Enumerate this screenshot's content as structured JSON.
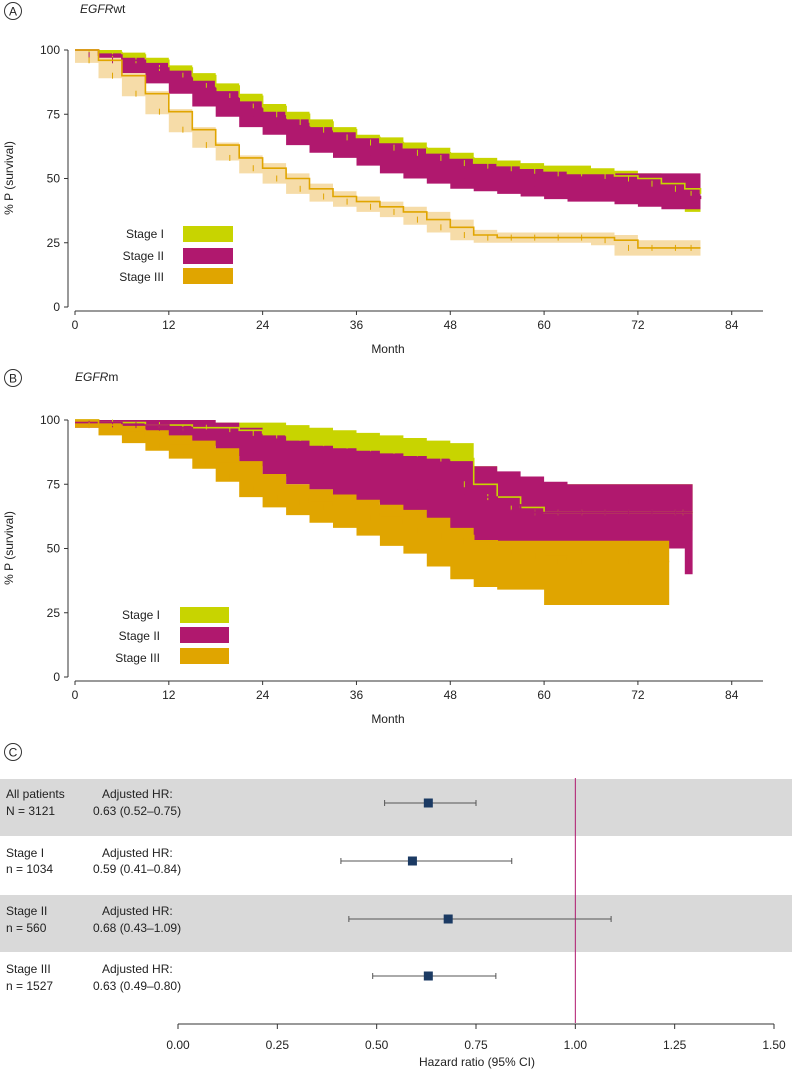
{
  "colors": {
    "stage1": "#c8d400",
    "stage2": "#b0186e",
    "stage3": "#e0a500",
    "stage3_band": "#f6dca8",
    "marker": "#1b3a63",
    "refline": "#b0186e",
    "shade": "#d9d9d9",
    "axis": "#333333"
  },
  "chart_data": [
    {
      "panel": "A",
      "type": "line",
      "title": "EGFRwt",
      "title_italic": "EGFR",
      "title_rest": "wt",
      "xlabel": "Month",
      "ylabel": "% P (survival)",
      "xlim": [
        0,
        88
      ],
      "ylim": [
        0,
        105
      ],
      "xticks": [
        "0",
        "12",
        "24",
        "36",
        "48",
        "60",
        "72",
        "84"
      ],
      "yticks": [
        "0",
        "25",
        "50",
        "75",
        "100"
      ],
      "legend": [
        "Stage I",
        "Stage II",
        "Stage III"
      ],
      "series": [
        {
          "name": "Stage I",
          "x": [
            0,
            3,
            6,
            9,
            12,
            15,
            18,
            21,
            24,
            27,
            30,
            33,
            36,
            39,
            42,
            45,
            48,
            51,
            54,
            57,
            60,
            63,
            66,
            69,
            72,
            75,
            78,
            80
          ],
          "y": [
            100,
            99,
            98,
            96,
            93,
            90,
            86,
            82,
            78,
            75,
            72,
            69,
            66,
            64,
            62,
            60,
            58,
            56,
            55,
            54,
            53,
            52,
            52,
            51,
            50,
            48,
            46,
            44
          ],
          "lo": [
            100,
            98,
            97,
            95,
            92,
            89,
            85,
            81,
            77,
            74,
            71,
            67,
            64,
            62,
            60,
            58,
            56,
            54,
            52,
            51,
            50,
            49,
            48,
            47,
            45,
            42,
            40,
            37
          ],
          "hi": [
            100,
            100,
            99,
            97,
            94,
            91,
            87,
            83,
            79,
            76,
            73,
            70,
            67,
            66,
            64,
            62,
            60,
            58,
            57,
            56,
            55,
            55,
            54,
            53,
            52,
            51,
            50,
            50
          ]
        },
        {
          "name": "Stage II",
          "x": [
            0,
            3,
            6,
            9,
            12,
            15,
            18,
            21,
            24,
            27,
            30,
            33,
            36,
            39,
            42,
            45,
            48,
            51,
            54,
            57,
            60,
            63,
            66,
            69,
            72,
            75,
            78,
            80
          ],
          "y": [
            100,
            98,
            96,
            93,
            89,
            85,
            81,
            77,
            73,
            70,
            67,
            64,
            62,
            60,
            57,
            55,
            53,
            51,
            50,
            49,
            48,
            47,
            46,
            46,
            45,
            44,
            43,
            42
          ],
          "lo": [
            100,
            97,
            94,
            91,
            87,
            83,
            78,
            74,
            70,
            67,
            63,
            60,
            58,
            55,
            52,
            50,
            48,
            46,
            45,
            44,
            43,
            42,
            41,
            41,
            40,
            39,
            38,
            38
          ],
          "hi": [
            100,
            99,
            97,
            95,
            92,
            88,
            84,
            80,
            76,
            73,
            70,
            68,
            66,
            64,
            62,
            60,
            58,
            56,
            55,
            54,
            53,
            52,
            52,
            52,
            52,
            52,
            52,
            52
          ]
        },
        {
          "name": "Stage III",
          "x": [
            0,
            3,
            6,
            9,
            12,
            15,
            18,
            21,
            24,
            27,
            30,
            33,
            36,
            39,
            42,
            45,
            48,
            51,
            54,
            57,
            60,
            63,
            66,
            69,
            72,
            75,
            78,
            80
          ],
          "y": [
            100,
            96,
            90,
            83,
            76,
            69,
            63,
            58,
            54,
            50,
            46,
            43,
            41,
            39,
            37,
            34,
            31,
            28,
            27,
            27,
            27,
            27,
            27,
            26,
            23,
            23,
            23,
            23
          ],
          "lo": [
            100,
            95,
            89,
            82,
            75,
            68,
            62,
            57,
            52,
            48,
            44,
            41,
            39,
            37,
            35,
            32,
            29,
            26,
            25,
            25,
            25,
            25,
            25,
            24,
            20,
            20,
            20,
            20
          ],
          "hi": [
            100,
            97,
            91,
            84,
            77,
            70,
            64,
            59,
            56,
            52,
            48,
            45,
            43,
            41,
            39,
            37,
            34,
            30,
            29,
            29,
            29,
            29,
            29,
            28,
            26,
            26,
            26,
            26
          ]
        }
      ]
    },
    {
      "panel": "B",
      "type": "line",
      "title": "EGFRm",
      "title_italic": "EGFR",
      "title_rest": "m",
      "xlabel": "Month",
      "ylabel": "% P (survival)",
      "xlim": [
        0,
        88
      ],
      "ylim": [
        0,
        105
      ],
      "xticks": [
        "0",
        "12",
        "24",
        "36",
        "48",
        "60",
        "72",
        "84"
      ],
      "yticks": [
        "0",
        "25",
        "50",
        "75",
        "100"
      ],
      "legend": [
        "Stage I",
        "Stage II",
        "Stage III"
      ],
      "series": [
        {
          "name": "Stage I",
          "x": [
            0,
            3,
            6,
            9,
            12,
            15,
            18,
            21,
            24,
            27,
            30,
            33,
            36,
            39,
            42,
            45,
            48,
            51,
            54,
            57,
            60,
            63,
            66,
            69,
            72,
            75,
            78,
            79
          ],
          "y": [
            100,
            99,
            99,
            98,
            98,
            97,
            97,
            96,
            95,
            94,
            93,
            91,
            90,
            89,
            88,
            87,
            85,
            75,
            70,
            66,
            64,
            64,
            64,
            64,
            64,
            64,
            64,
            64
          ],
          "lo": [
            100,
            98,
            98,
            97,
            96,
            95,
            94,
            92,
            90,
            88,
            86,
            84,
            82,
            81,
            80,
            78,
            76,
            68,
            63,
            59,
            57,
            57,
            57,
            57,
            57,
            57,
            57,
            57
          ],
          "hi": [
            100,
            100,
            100,
            100,
            100,
            99,
            99,
            99,
            99,
            98,
            97,
            96,
            95,
            94,
            93,
            92,
            91,
            82,
            77,
            75,
            75,
            75,
            75,
            75,
            75,
            75,
            75,
            75
          ]
        },
        {
          "name": "Stage II",
          "x": [
            0,
            3,
            6,
            9,
            12,
            15,
            18,
            21,
            24,
            27,
            30,
            33,
            36,
            39,
            42,
            45,
            48,
            51,
            54,
            57,
            60,
            63,
            66,
            69,
            72,
            75,
            78,
            79
          ],
          "y": [
            99,
            99,
            98,
            98,
            97,
            96,
            95,
            92,
            88,
            85,
            83,
            82,
            80,
            78,
            76,
            74,
            72,
            70,
            67,
            64,
            64,
            64,
            64,
            64,
            64,
            64,
            64,
            64
          ],
          "lo": [
            98,
            97,
            96,
            95,
            94,
            92,
            90,
            86,
            82,
            78,
            75,
            73,
            71,
            68,
            65,
            62,
            58,
            55,
            52,
            50,
            50,
            50,
            50,
            50,
            50,
            50,
            50,
            40
          ],
          "hi": [
            100,
            100,
            100,
            100,
            100,
            100,
            99,
            97,
            94,
            92,
            90,
            89,
            88,
            87,
            86,
            85,
            84,
            82,
            80,
            78,
            76,
            75,
            75,
            75,
            75,
            75,
            75,
            75
          ]
        },
        {
          "name": "Stage III",
          "x": [
            0,
            3,
            6,
            9,
            12,
            15,
            18,
            21,
            24,
            27,
            30,
            33,
            36,
            39,
            42,
            45,
            48,
            51,
            54,
            57,
            60,
            63,
            66,
            69,
            72,
            75,
            76
          ],
          "y": [
            100,
            98,
            96,
            93,
            90,
            87,
            83,
            78,
            73,
            70,
            68,
            66,
            64,
            62,
            59,
            57,
            55,
            53,
            51,
            49,
            47,
            45,
            45,
            45,
            45,
            45,
            45
          ],
          "lo": [
            100,
            97,
            94,
            91,
            88,
            85,
            81,
            76,
            70,
            66,
            63,
            60,
            58,
            55,
            51,
            48,
            43,
            38,
            35,
            34,
            34,
            28,
            28,
            28,
            28,
            28,
            28
          ],
          "hi": [
            100,
            99,
            98,
            96,
            94,
            92,
            89,
            84,
            79,
            75,
            73,
            71,
            69,
            67,
            65,
            62,
            58,
            53,
            53,
            53,
            53,
            53,
            53,
            53,
            53,
            53,
            53
          ]
        }
      ]
    },
    {
      "panel": "C",
      "type": "forest",
      "xlabel": "Hazard ratio (95% CI)",
      "xlim": [
        0,
        1.5
      ],
      "xticks": [
        "0.00",
        "0.25",
        "0.50",
        "0.75",
        "1.00",
        "1.25",
        "1.50"
      ],
      "reference": 1.0,
      "rows": [
        {
          "group": "All patients",
          "n": "N = 3121",
          "hr_label": "Adjusted HR:",
          "hr_text": "0.63 (0.52–0.75)",
          "hr": 0.63,
          "lo": 0.52,
          "hi": 0.75,
          "shaded": true
        },
        {
          "group": "Stage I",
          "n": "n = 1034",
          "hr_label": "Adjusted HR:",
          "hr_text": "0.59 (0.41–0.84)",
          "hr": 0.59,
          "lo": 0.41,
          "hi": 0.84,
          "shaded": false
        },
        {
          "group": "Stage II",
          "n": "n = 560",
          "hr_label": "Adjusted HR:",
          "hr_text": "0.68 (0.43–1.09)",
          "hr": 0.68,
          "lo": 0.43,
          "hi": 1.09,
          "shaded": true
        },
        {
          "group": "Stage III",
          "n": "n = 1527",
          "hr_label": "Adjusted HR:",
          "hr_text": "0.63 (0.49–0.80)",
          "hr": 0.63,
          "lo": 0.49,
          "hi": 0.8,
          "shaded": false
        }
      ]
    }
  ]
}
